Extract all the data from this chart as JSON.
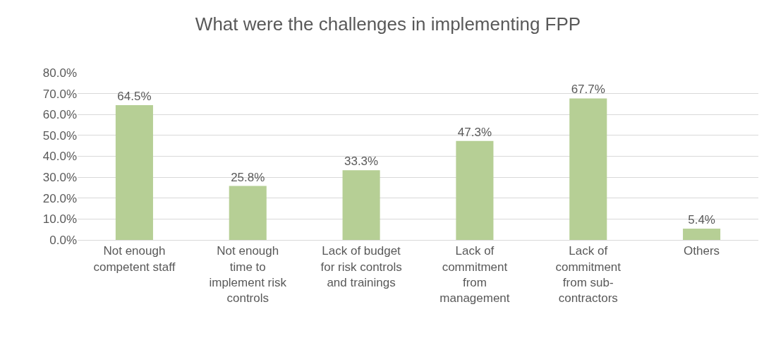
{
  "chart_data": {
    "type": "bar",
    "title": "What were the challenges in implementing FPP",
    "categories": [
      "Not enough\ncompetent staff",
      "Not enough\ntime to\nimplement risk\ncontrols",
      "Lack of budget\nfor risk controls\nand trainings",
      "Lack of\ncommitment\nfrom\nmanagement",
      "Lack of\ncommitment\nfrom sub-\ncontractors",
      "Others"
    ],
    "values": [
      64.5,
      25.8,
      33.3,
      47.3,
      67.7,
      5.4
    ],
    "value_labels": [
      "64.5%",
      "25.8%",
      "33.3%",
      "47.3%",
      "67.7%",
      "5.4%"
    ],
    "color": "#b6cf95",
    "ylim": [
      0,
      80
    ],
    "yticks": [
      {
        "value": 0,
        "label": "0.0%"
      },
      {
        "value": 10,
        "label": "10.0%"
      },
      {
        "value": 20,
        "label": "20.0%"
      },
      {
        "value": 30,
        "label": "30.0%"
      },
      {
        "value": 40,
        "label": "40.0%"
      },
      {
        "value": 50,
        "label": "50.0%"
      },
      {
        "value": 60,
        "label": "60.0%"
      },
      {
        "value": 70,
        "label": "70.0%"
      },
      {
        "value": 80,
        "label": "80.0%"
      }
    ],
    "grid": "y",
    "legend": false
  }
}
